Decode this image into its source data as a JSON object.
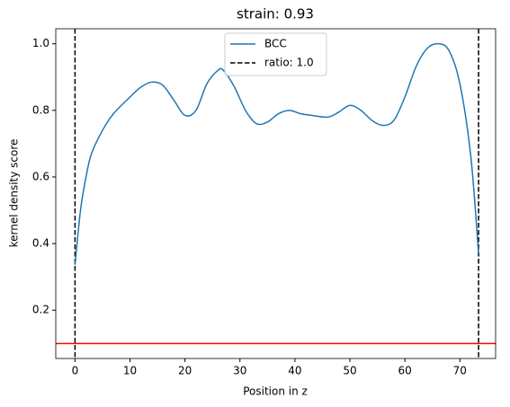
{
  "chart_data": {
    "type": "line",
    "title": "strain: 0.93",
    "xlabel": "Position in z",
    "ylabel": "kernel density score",
    "x": [
      0,
      1,
      2,
      3,
      5,
      7,
      10,
      12,
      14,
      16,
      18,
      20,
      22,
      24,
      26,
      27,
      29,
      31,
      33,
      35,
      37,
      39,
      41,
      43,
      46,
      48,
      50,
      52,
      54,
      56,
      58,
      60,
      62,
      64,
      66,
      68,
      70,
      72,
      73.4
    ],
    "series": [
      {
        "name": "BCC",
        "color": "#1f77b4",
        "values": [
          0.336,
          0.5,
          0.6,
          0.67,
          0.74,
          0.79,
          0.84,
          0.87,
          0.885,
          0.875,
          0.83,
          0.785,
          0.8,
          0.88,
          0.92,
          0.92,
          0.87,
          0.8,
          0.76,
          0.765,
          0.79,
          0.8,
          0.79,
          0.785,
          0.78,
          0.795,
          0.815,
          0.8,
          0.77,
          0.755,
          0.77,
          0.84,
          0.93,
          0.985,
          1.0,
          0.98,
          0.88,
          0.66,
          0.37
        ]
      }
    ],
    "vlines": {
      "name": "ratio: 1.0",
      "color": "#000000",
      "x": [
        0,
        73.4
      ]
    },
    "hline": {
      "y": 0.1,
      "color": "#ff0000"
    },
    "xlim": [
      -3.5,
      76.5
    ],
    "ylim": [
      0.055,
      1.045
    ],
    "xticks": [
      0,
      10,
      20,
      30,
      40,
      50,
      60,
      70
    ],
    "yticks": [
      0.2,
      0.4,
      0.6,
      0.8,
      {
        "value": 1,
        "label": "1.0"
      }
    ],
    "legend": "upper center"
  }
}
